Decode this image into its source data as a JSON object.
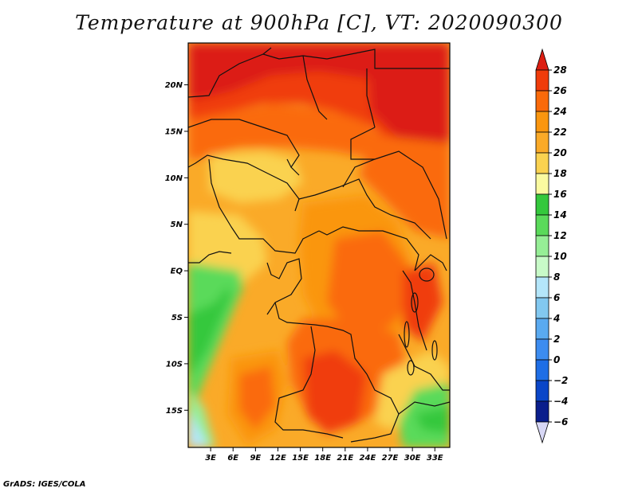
{
  "title": "Temperature at 900hPa [C], VT: 2020090300",
  "credit": "GrADS: IGES/COLA",
  "map": {
    "lon_range": [
      0,
      35
    ],
    "lat_range": [
      -19,
      24.5
    ],
    "lat_ticks": [
      {
        "value": 20,
        "label": "20N"
      },
      {
        "value": 15,
        "label": "15N"
      },
      {
        "value": 10,
        "label": "10N"
      },
      {
        "value": 5,
        "label": "5N"
      },
      {
        "value": 0,
        "label": "EQ"
      },
      {
        "value": -5,
        "label": "5S"
      },
      {
        "value": -10,
        "label": "10S"
      },
      {
        "value": -15,
        "label": "15S"
      }
    ],
    "lon_ticks": [
      {
        "value": 3,
        "label": "3E"
      },
      {
        "value": 6,
        "label": "6E"
      },
      {
        "value": 9,
        "label": "9E"
      },
      {
        "value": 12,
        "label": "12E"
      },
      {
        "value": 15,
        "label": "15E"
      },
      {
        "value": 18,
        "label": "18E"
      },
      {
        "value": 21,
        "label": "21E"
      },
      {
        "value": 24,
        "label": "24E"
      },
      {
        "value": 27,
        "label": "27E"
      },
      {
        "value": 30,
        "label": "30E"
      },
      {
        "value": 33,
        "label": "33E"
      }
    ]
  },
  "colorbar": {
    "levels": [
      {
        "value": 28,
        "label": "28"
      },
      {
        "value": 26,
        "label": "26"
      },
      {
        "value": 24,
        "label": "24"
      },
      {
        "value": 22,
        "label": "22"
      },
      {
        "value": 20,
        "label": "20"
      },
      {
        "value": 18,
        "label": "18"
      },
      {
        "value": 16,
        "label": "16"
      },
      {
        "value": 14,
        "label": "14"
      },
      {
        "value": 12,
        "label": "12"
      },
      {
        "value": 10,
        "label": "10"
      },
      {
        "value": 8,
        "label": "8"
      },
      {
        "value": 6,
        "label": "6"
      },
      {
        "value": 4,
        "label": "4"
      },
      {
        "value": 2,
        "label": "2"
      },
      {
        "value": 0,
        "label": "0"
      },
      {
        "value": -2,
        "label": "−2"
      },
      {
        "value": -4,
        "label": "−4"
      },
      {
        "value": -6,
        "label": "−6"
      }
    ],
    "colors_top_to_bottom": [
      "#dc1e12",
      "#f03c0a",
      "#fa6a0a",
      "#fa960f",
      "#faaa28",
      "#fad250",
      "#fafaa0",
      "#34c83c",
      "#5ada5a",
      "#96ee96",
      "#c8fac8",
      "#b4e6fa",
      "#82c8f0",
      "#5aaaf0",
      "#3c8cf0",
      "#1e6ee6",
      "#0a46c8",
      "#0a1e8c",
      "#d7d7f5"
    ]
  }
}
